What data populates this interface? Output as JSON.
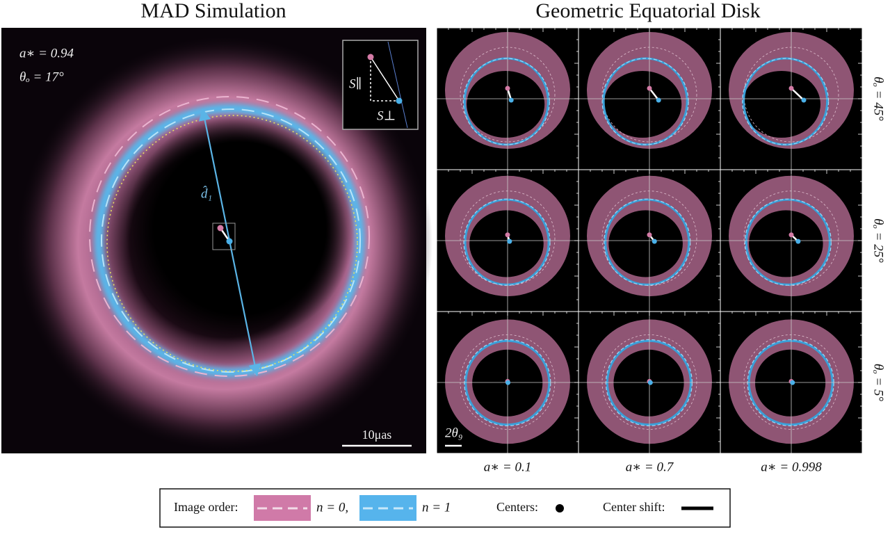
{
  "left_panel": {
    "title": "MAD Simulation",
    "spin_label": "a∗ = 0.94",
    "inclination_label": "θₒ = 17°",
    "diameter_label": "d̂₁",
    "inset": {
      "parallel_label": "S∥",
      "perpendicular_label": "S⊥"
    },
    "scale_bar_label": "10μas"
  },
  "right_panel": {
    "title": "Geometric Equatorial Disk",
    "row_labels": [
      "θₒ = 45°",
      "θₒ = 25°",
      "θₒ = 5°"
    ],
    "column_labels": [
      "a∗ = 0.1",
      "a∗ = 0.7",
      "a∗ = 0.998"
    ],
    "scale_bar_label": "2θ₉"
  },
  "legend": {
    "image_order_label": "Image order:",
    "n0_label": "n = 0,",
    "n1_label": "n = 1",
    "centers_label": "Centers:",
    "center_shift_label": "Center shift:"
  }
}
